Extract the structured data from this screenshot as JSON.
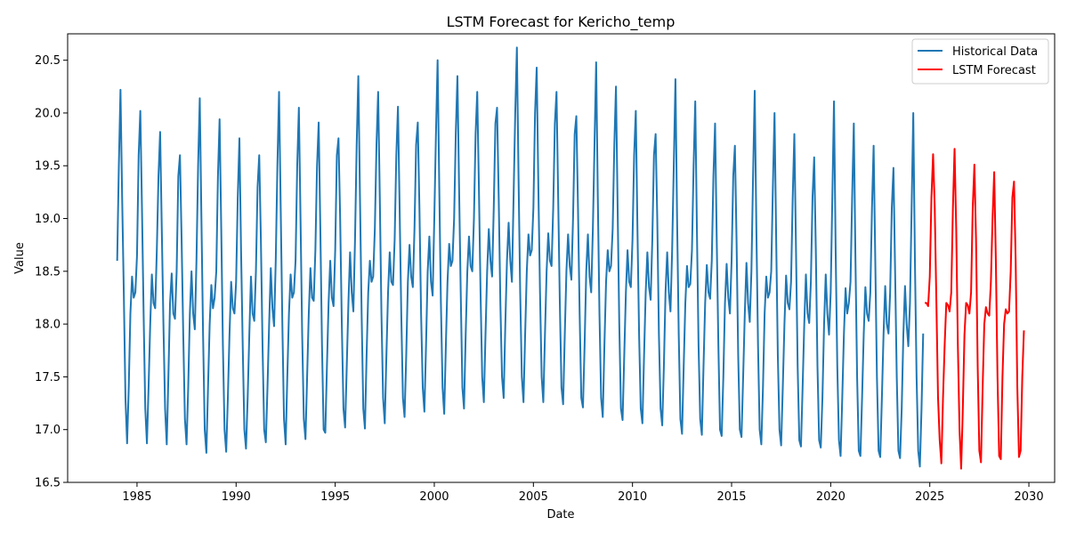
{
  "chart_data": {
    "type": "line",
    "title": "LSTM Forecast for Kericho_temp",
    "xlabel": "Date",
    "ylabel": "Value",
    "xlim": [
      1981.5,
      2031.3
    ],
    "ylim": [
      16.5,
      20.75
    ],
    "x_ticks": [
      1985,
      1990,
      1995,
      2000,
      2005,
      2010,
      2015,
      2020,
      2025,
      2030
    ],
    "y_ticks": [
      16.5,
      17.0,
      17.5,
      18.0,
      18.5,
      19.0,
      19.5,
      20.0,
      20.5
    ],
    "x_tick_labels": [
      "1985",
      "1990",
      "1995",
      "2000",
      "2005",
      "2010",
      "2015",
      "2020",
      "2025",
      "2030"
    ],
    "y_tick_labels": [
      "16.5",
      "17.0",
      "17.5",
      "18.0",
      "18.5",
      "19.0",
      "19.5",
      "20.0",
      "20.5"
    ],
    "legend_position": "top-right",
    "series": [
      {
        "name": "Historical Data",
        "color": "#1f77b4",
        "start": 1984.0,
        "step": 0.0833333,
        "values": [
          18.6,
          19.5,
          20.22,
          19.2,
          18.3,
          17.3,
          16.87,
          17.4,
          18.1,
          18.45,
          18.25,
          18.3,
          18.65,
          19.6,
          20.02,
          19.1,
          18.1,
          17.2,
          16.87,
          17.4,
          18.0,
          18.47,
          18.2,
          18.15,
          18.7,
          19.4,
          19.82,
          18.9,
          18.0,
          17.2,
          16.86,
          17.5,
          18.2,
          18.48,
          18.1,
          18.05,
          18.5,
          19.4,
          19.6,
          18.8,
          17.9,
          17.1,
          16.86,
          17.4,
          18.1,
          18.5,
          18.1,
          17.95,
          18.6,
          19.5,
          20.14,
          19.0,
          17.9,
          17.0,
          16.78,
          17.4,
          18.0,
          18.37,
          18.15,
          18.25,
          18.5,
          19.4,
          19.94,
          18.9,
          17.8,
          17.0,
          16.79,
          17.3,
          17.9,
          18.4,
          18.15,
          18.1,
          18.4,
          19.2,
          19.76,
          18.7,
          17.8,
          17.0,
          16.82,
          17.3,
          17.9,
          18.45,
          18.1,
          18.03,
          18.5,
          19.3,
          19.6,
          18.8,
          17.8,
          17.0,
          16.88,
          17.4,
          18.0,
          18.53,
          18.15,
          17.98,
          18.6,
          19.5,
          20.2,
          19.1,
          18.0,
          17.1,
          16.86,
          17.5,
          18.1,
          18.47,
          18.25,
          18.3,
          18.6,
          19.5,
          20.05,
          19.0,
          17.9,
          17.1,
          16.91,
          17.5,
          18.1,
          18.53,
          18.25,
          18.22,
          18.7,
          19.5,
          19.91,
          18.9,
          17.8,
          17.0,
          16.97,
          17.6,
          18.2,
          18.6,
          18.25,
          18.17,
          18.7,
          19.6,
          19.76,
          19.0,
          18.0,
          17.2,
          17.02,
          17.6,
          18.2,
          18.68,
          18.3,
          18.12,
          18.8,
          19.7,
          20.35,
          19.2,
          18.1,
          17.2,
          17.01,
          17.7,
          18.3,
          18.6,
          18.4,
          18.45,
          18.9,
          19.7,
          20.2,
          19.2,
          18.1,
          17.3,
          17.06,
          17.7,
          18.3,
          18.68,
          18.4,
          18.37,
          18.8,
          19.6,
          20.06,
          19.1,
          18.1,
          17.3,
          17.12,
          17.7,
          18.4,
          18.75,
          18.45,
          18.35,
          18.9,
          19.7,
          19.91,
          19.1,
          18.1,
          17.4,
          17.17,
          17.8,
          18.5,
          18.83,
          18.4,
          18.27,
          19.0,
          19.8,
          20.5,
          19.3,
          18.2,
          17.4,
          17.15,
          17.8,
          18.4,
          18.76,
          18.55,
          18.6,
          19.0,
          19.8,
          20.35,
          19.3,
          18.3,
          17.4,
          17.2,
          17.9,
          18.5,
          18.83,
          18.55,
          18.5,
          19.0,
          19.8,
          20.2,
          19.3,
          18.3,
          17.5,
          17.26,
          17.9,
          18.5,
          18.9,
          18.6,
          18.45,
          19.1,
          19.9,
          20.05,
          19.2,
          18.2,
          17.5,
          17.3,
          18.0,
          18.6,
          18.96,
          18.6,
          18.4,
          19.2,
          20.0,
          20.62,
          19.4,
          18.3,
          17.5,
          17.26,
          17.9,
          18.5,
          18.85,
          18.65,
          18.7,
          19.1,
          20.0,
          20.43,
          19.3,
          18.3,
          17.5,
          17.26,
          17.9,
          18.5,
          18.86,
          18.6,
          18.55,
          19.1,
          19.9,
          20.2,
          19.2,
          18.2,
          17.4,
          17.24,
          17.9,
          18.5,
          18.85,
          18.55,
          18.42,
          19.0,
          19.8,
          19.97,
          19.1,
          18.1,
          17.3,
          17.21,
          17.8,
          18.5,
          18.85,
          18.45,
          18.3,
          18.9,
          19.7,
          20.48,
          19.2,
          18.1,
          17.3,
          17.12,
          17.8,
          18.4,
          18.7,
          18.5,
          18.55,
          18.9,
          19.7,
          20.25,
          19.1,
          18.0,
          17.2,
          17.09,
          17.7,
          18.3,
          18.7,
          18.4,
          18.35,
          18.8,
          19.6,
          20.02,
          18.9,
          17.9,
          17.2,
          17.06,
          17.7,
          18.3,
          18.68,
          18.35,
          18.23,
          18.8,
          19.6,
          19.8,
          19.0,
          17.9,
          17.2,
          17.04,
          17.6,
          18.3,
          18.68,
          18.3,
          18.12,
          18.7,
          19.5,
          20.32,
          19.0,
          17.9,
          17.1,
          16.96,
          17.6,
          18.2,
          18.55,
          18.35,
          18.38,
          18.7,
          19.5,
          20.11,
          18.9,
          17.8,
          17.1,
          16.95,
          17.6,
          18.2,
          18.56,
          18.3,
          18.24,
          18.6,
          19.4,
          19.9,
          18.8,
          17.8,
          17.0,
          16.94,
          17.5,
          18.2,
          18.57,
          18.25,
          18.1,
          18.6,
          19.4,
          19.69,
          18.8,
          17.7,
          17.0,
          16.93,
          17.5,
          18.1,
          18.58,
          18.2,
          18.02,
          18.5,
          19.4,
          20.21,
          18.9,
          17.8,
          17.0,
          16.86,
          17.4,
          18.1,
          18.45,
          18.25,
          18.3,
          18.5,
          19.3,
          20.0,
          18.8,
          17.7,
          17.0,
          16.85,
          17.4,
          18.0,
          18.46,
          18.2,
          18.14,
          18.4,
          19.2,
          19.8,
          18.7,
          17.6,
          16.9,
          16.84,
          17.4,
          18.0,
          18.47,
          18.1,
          18.01,
          18.4,
          19.2,
          19.58,
          18.7,
          17.6,
          16.9,
          16.83,
          17.3,
          18.0,
          18.47,
          18.1,
          17.9,
          18.3,
          19.2,
          20.11,
          18.7,
          17.6,
          16.9,
          16.75,
          17.3,
          17.9,
          18.34,
          18.1,
          18.2,
          18.4,
          19.2,
          19.9,
          18.6,
          17.5,
          16.8,
          16.75,
          17.3,
          17.9,
          18.35,
          18.1,
          18.03,
          18.3,
          19.1,
          19.69,
          18.6,
          17.5,
          16.8,
          16.74,
          17.3,
          17.9,
          18.36,
          18.0,
          17.91,
          18.3,
          19.1,
          19.48,
          18.5,
          17.5,
          16.8,
          16.73,
          17.2,
          17.9,
          18.36,
          18.0,
          17.79,
          18.2,
          19.1,
          20.0,
          18.6,
          17.5,
          16.8,
          16.65,
          17.2,
          17.91
        ]
      },
      {
        "name": "LSTM Forecast",
        "color": "#ff0000",
        "start": 2024.75,
        "step": 0.0833333,
        "values": [
          18.2,
          18.2,
          18.17,
          18.45,
          19.2,
          19.61,
          19.1,
          18.2,
          17.3,
          16.9,
          16.68,
          17.3,
          17.8,
          18.2,
          18.18,
          18.12,
          18.3,
          19.1,
          19.66,
          18.9,
          17.8,
          17.0,
          16.63,
          17.2,
          17.9,
          18.2,
          18.18,
          18.1,
          18.3,
          19.1,
          19.51,
          18.8,
          17.6,
          16.8,
          16.69,
          17.4,
          18.0,
          18.16,
          18.1,
          18.08,
          18.4,
          19.0,
          19.44,
          18.6,
          17.5,
          16.75,
          16.72,
          17.5,
          18.0,
          18.14,
          18.1,
          18.12,
          18.5,
          19.2,
          19.35,
          18.6,
          17.4,
          16.74,
          16.8,
          17.5,
          17.94
        ]
      }
    ]
  }
}
